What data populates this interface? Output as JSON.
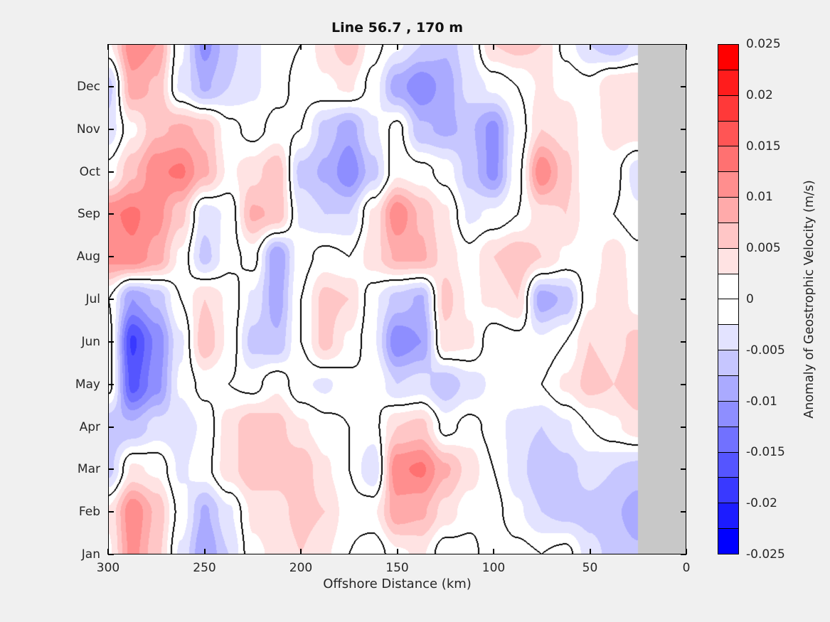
{
  "figure": {
    "bg": "#f0f0f0",
    "text_color": "#262626",
    "title_color": "#111111"
  },
  "title": "Line 56.7 , 170 m",
  "axes": {
    "xlabel": "Offshore Distance (km)",
    "x_ticks": [
      "300",
      "250",
      "200",
      "150",
      "100",
      "50",
      "0"
    ],
    "y_ticks": [
      "Jan",
      "Feb",
      "Mar",
      "Apr",
      "May",
      "Jun",
      "Jul",
      "Aug",
      "Sep",
      "Oct",
      "Nov",
      "Dec"
    ],
    "plot_bg": "#ffffff",
    "axis_color": "#000000"
  },
  "colorbar": {
    "label": "Anomaly of Geostrophic Velocity (m/s)",
    "tick_labels": [
      "0.025",
      "0.02",
      "0.015",
      "0.01",
      "0.005",
      "0",
      "-0.005",
      "-0.01",
      "-0.015",
      "-0.02",
      "-0.025"
    ],
    "min": -0.025,
    "max": 0.025,
    "segment_colors": [
      "#0000ff",
      "#1c1cff",
      "#3939ff",
      "#5555ff",
      "#7171ff",
      "#8e8eff",
      "#aaaaff",
      "#c6c6ff",
      "#e3e3ff",
      "#ffffff",
      "#ffffff",
      "#ffe3e3",
      "#ffc6c6",
      "#ffaaaa",
      "#ff8e8e",
      "#ff7171",
      "#ff5555",
      "#ff3939",
      "#ff1c1c",
      "#ff0000"
    ]
  },
  "chart_data": {
    "type": "heatmap",
    "subtype": "filled-contour",
    "title": "Line 56.7 , 170 m",
    "xlabel": "Offshore Distance (km)",
    "ylabel": "Month",
    "units": "m/s",
    "x_axis_reversed": true,
    "x_range_km": [
      300,
      0
    ],
    "contour_interval": 0.0025,
    "zero_contour_color": "#000000",
    "nodata_km_range": [
      25,
      0
    ],
    "nodata_color": "#c8c8c8",
    "x_km": [
      300,
      287.5,
      275,
      262.5,
      250,
      237.5,
      225,
      212.5,
      200,
      187.5,
      175,
      162.5,
      150,
      137.5,
      125,
      112.5,
      100,
      87.5,
      75,
      62.5,
      50,
      37.5,
      25
    ],
    "months": [
      "Jan",
      "Feb",
      "Mar",
      "Apr",
      "May",
      "Jun",
      "Jul",
      "Aug",
      "Sep",
      "Oct",
      "Nov",
      "Dec",
      "Jan"
    ],
    "values_milli_mps": [
      [
        2,
        11,
        6,
        -3,
        -10,
        -5,
        2,
        3,
        5,
        3,
        0,
        -2,
        2,
        3,
        -2,
        -1,
        2,
        1,
        0,
        1,
        -4,
        -6,
        -7
      ],
      [
        3,
        12,
        7,
        -1,
        -8,
        -3,
        3,
        4,
        6,
        5,
        1,
        2,
        9,
        8,
        4,
        1,
        1,
        -2,
        -5,
        -6,
        -6,
        -7,
        -9
      ],
      [
        -6,
        3,
        2,
        -3,
        -1,
        4,
        7,
        6,
        7,
        3,
        0,
        -5,
        12,
        13,
        8,
        4,
        0,
        -4,
        -7,
        -6,
        -4,
        -5,
        -6
      ],
      [
        -7,
        -7,
        -4,
        -4,
        -2,
        4,
        7,
        6,
        3,
        1,
        0,
        -1,
        5,
        6,
        -1,
        1,
        -1,
        -4,
        -5,
        -3,
        0,
        2,
        4
      ],
      [
        1,
        -16,
        -11,
        -2,
        1,
        0,
        -1,
        2,
        -2,
        -3,
        -1,
        0,
        -5,
        -4,
        -7,
        -4,
        -2,
        0,
        0,
        3,
        6,
        5,
        7
      ],
      [
        1,
        -18,
        -12,
        -3,
        7,
        2,
        -6,
        -7,
        0,
        6,
        2,
        -2,
        -12,
        -10,
        4,
        3,
        -2,
        -1,
        -2,
        0,
        5,
        4,
        6
      ],
      [
        0,
        -10,
        -7,
        0,
        5,
        2,
        -3,
        -9,
        0,
        6,
        5,
        -2,
        -6,
        -8,
        6,
        2,
        3,
        5,
        -9,
        -7,
        2,
        5,
        1
      ],
      [
        11,
        12,
        9,
        2,
        -6,
        -1,
        1,
        -10,
        -1,
        1,
        0,
        4,
        8,
        8,
        4,
        1,
        5,
        7,
        5,
        2,
        1,
        4,
        1
      ],
      [
        12,
        13,
        11,
        6,
        -4,
        -2,
        8,
        7,
        -3,
        -5,
        -5,
        3,
        12,
        7,
        3,
        -3,
        -2,
        0,
        4,
        5,
        1,
        0,
        -2
      ],
      [
        1,
        7,
        12,
        13,
        8,
        2,
        4,
        7,
        -6,
        -8,
        -12,
        -6,
        2,
        1,
        -1,
        -6,
        -11,
        -1,
        12,
        6,
        0,
        1,
        -4
      ],
      [
        -4,
        2,
        7,
        8,
        7,
        1,
        -1,
        1,
        0,
        -6,
        -9,
        -3,
        1,
        -7,
        -8,
        -7,
        -11,
        -2,
        5,
        4,
        1,
        4,
        4
      ],
      [
        -6,
        9,
        7,
        -3,
        -8,
        -5,
        -3,
        -1,
        1,
        2,
        3,
        -1,
        -9,
        -12,
        -9,
        -4,
        -2,
        0,
        3,
        2,
        1,
        5,
        5
      ],
      [
        2,
        12,
        10,
        -2,
        -11,
        -6,
        -3,
        -1,
        0,
        4,
        7,
        1,
        -2,
        -5,
        -7,
        -3,
        5,
        6,
        5,
        -1,
        -5,
        -7,
        -4
      ]
    ]
  }
}
